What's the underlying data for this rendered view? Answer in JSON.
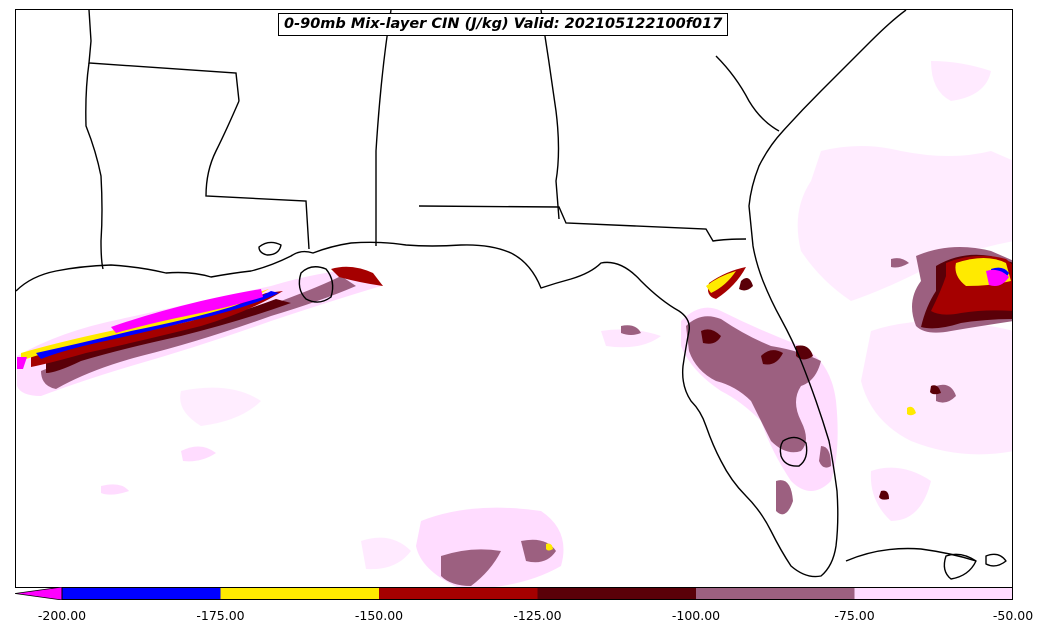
{
  "title": "0-90mb Mix-layer CIN (J/kg) Valid: 202105122100f017",
  "colorbar": {
    "extend_color": "#ff00ff",
    "bins": [
      {
        "from": -200,
        "to": -175,
        "color": "#0000ff"
      },
      {
        "from": -175,
        "to": -150,
        "color": "#ffea00"
      },
      {
        "from": -150,
        "to": -125,
        "color": "#a50000"
      },
      {
        "from": -125,
        "to": -100,
        "color": "#5a0008"
      },
      {
        "from": -100,
        "to": -75,
        "color": "#9c6080"
      },
      {
        "from": -75,
        "to": -50,
        "color": "#ffdcff"
      }
    ],
    "tick_labels": [
      "-200.00",
      "-175.00",
      "-150.00",
      "-125.00",
      "-100.00",
      "-75.00",
      "-50.00"
    ]
  },
  "map": {
    "region": "Southeastern United States and Gulf of Mexico",
    "features": [
      "state-borders",
      "coastlines"
    ]
  }
}
